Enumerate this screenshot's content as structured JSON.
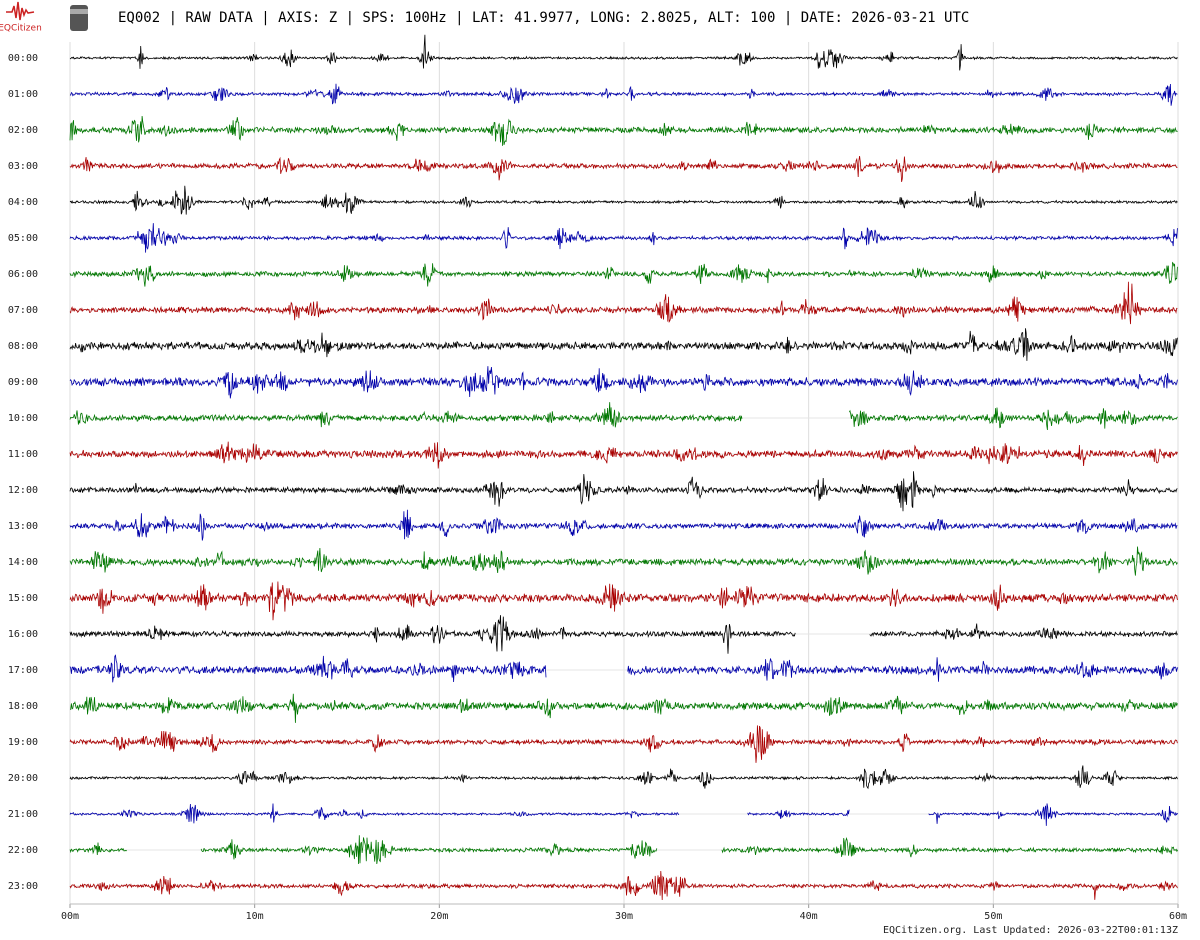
{
  "chart_data": {
    "type": "helicorder",
    "title": "EQ002 | RAW DATA | AXIS: Z | SPS: 100Hz | LAT: 41.9977, LONG: 2.8025, ALT: 100 | DATE: 2026-03-21 UTC",
    "logo": "EQCitizen",
    "footer": "EQCitizen.org. Last Updated: 2026-03-22T00:01:13Z",
    "xlim": [
      0,
      60
    ],
    "xticks": [
      {
        "value": 0,
        "label": "00m"
      },
      {
        "value": 10,
        "label": "10m"
      },
      {
        "value": 20,
        "label": "20m"
      },
      {
        "value": 30,
        "label": "30m"
      },
      {
        "value": 40,
        "label": "40m"
      },
      {
        "value": 50,
        "label": "50m"
      },
      {
        "value": 60,
        "label": "60m"
      }
    ],
    "grid": true,
    "series": [
      {
        "name": "00:00",
        "color": "#000000",
        "segments": [
          [
            0,
            60
          ]
        ]
      },
      {
        "name": "01:00",
        "color": "#0000aa",
        "segments": [
          [
            0,
            60
          ]
        ]
      },
      {
        "name": "02:00",
        "color": "#007700",
        "segments": [
          [
            0,
            60
          ]
        ]
      },
      {
        "name": "03:00",
        "color": "#aa0000",
        "segments": [
          [
            0,
            60
          ]
        ]
      },
      {
        "name": "04:00",
        "color": "#000000",
        "segments": [
          [
            0,
            60
          ]
        ]
      },
      {
        "name": "05:00",
        "color": "#0000aa",
        "segments": [
          [
            0,
            60
          ]
        ]
      },
      {
        "name": "06:00",
        "color": "#007700",
        "segments": [
          [
            0,
            60
          ]
        ]
      },
      {
        "name": "07:00",
        "color": "#aa0000",
        "segments": [
          [
            0,
            60
          ]
        ]
      },
      {
        "name": "08:00",
        "color": "#000000",
        "segments": [
          [
            0,
            60
          ]
        ]
      },
      {
        "name": "09:00",
        "color": "#0000aa",
        "segments": [
          [
            0,
            60
          ]
        ]
      },
      {
        "name": "10:00",
        "color": "#007700",
        "segments": [
          [
            0,
            36.4
          ],
          [
            42.2,
            60
          ]
        ]
      },
      {
        "name": "11:00",
        "color": "#aa0000",
        "segments": [
          [
            0,
            60
          ]
        ]
      },
      {
        "name": "12:00",
        "color": "#000000",
        "segments": [
          [
            0,
            60
          ]
        ]
      },
      {
        "name": "13:00",
        "color": "#0000aa",
        "segments": [
          [
            0,
            60
          ]
        ]
      },
      {
        "name": "14:00",
        "color": "#007700",
        "segments": [
          [
            0,
            60
          ]
        ]
      },
      {
        "name": "15:00",
        "color": "#aa0000",
        "segments": [
          [
            0,
            60
          ]
        ]
      },
      {
        "name": "16:00",
        "color": "#000000",
        "segments": [
          [
            0,
            39.3
          ],
          [
            43.3,
            60
          ]
        ]
      },
      {
        "name": "17:00",
        "color": "#0000aa",
        "segments": [
          [
            0,
            25.8
          ],
          [
            30.2,
            60
          ]
        ]
      },
      {
        "name": "18:00",
        "color": "#007700",
        "segments": [
          [
            0,
            60
          ]
        ]
      },
      {
        "name": "19:00",
        "color": "#aa0000",
        "segments": [
          [
            0,
            60
          ]
        ]
      },
      {
        "name": "20:00",
        "color": "#000000",
        "segments": [
          [
            0,
            60
          ]
        ]
      },
      {
        "name": "21:00",
        "color": "#0000aa",
        "segments": [
          [
            0,
            33.0
          ],
          [
            36.7,
            42.2
          ],
          [
            46.5,
            60
          ]
        ]
      },
      {
        "name": "22:00",
        "color": "#007700",
        "segments": [
          [
            0,
            3.1
          ],
          [
            7.1,
            31.8
          ],
          [
            35.3,
            60
          ]
        ]
      },
      {
        "name": "23:00",
        "color": "#aa0000",
        "segments": [
          [
            0,
            60
          ]
        ]
      }
    ]
  }
}
